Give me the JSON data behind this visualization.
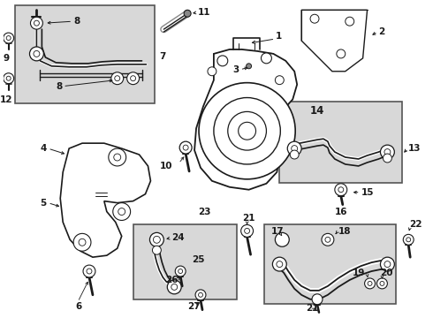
{
  "bg_color": "#ffffff",
  "line_color": "#1a1a1a",
  "gray_fill": "#d8d8d8",
  "fig_width": 4.9,
  "fig_height": 3.6,
  "dpi": 100
}
